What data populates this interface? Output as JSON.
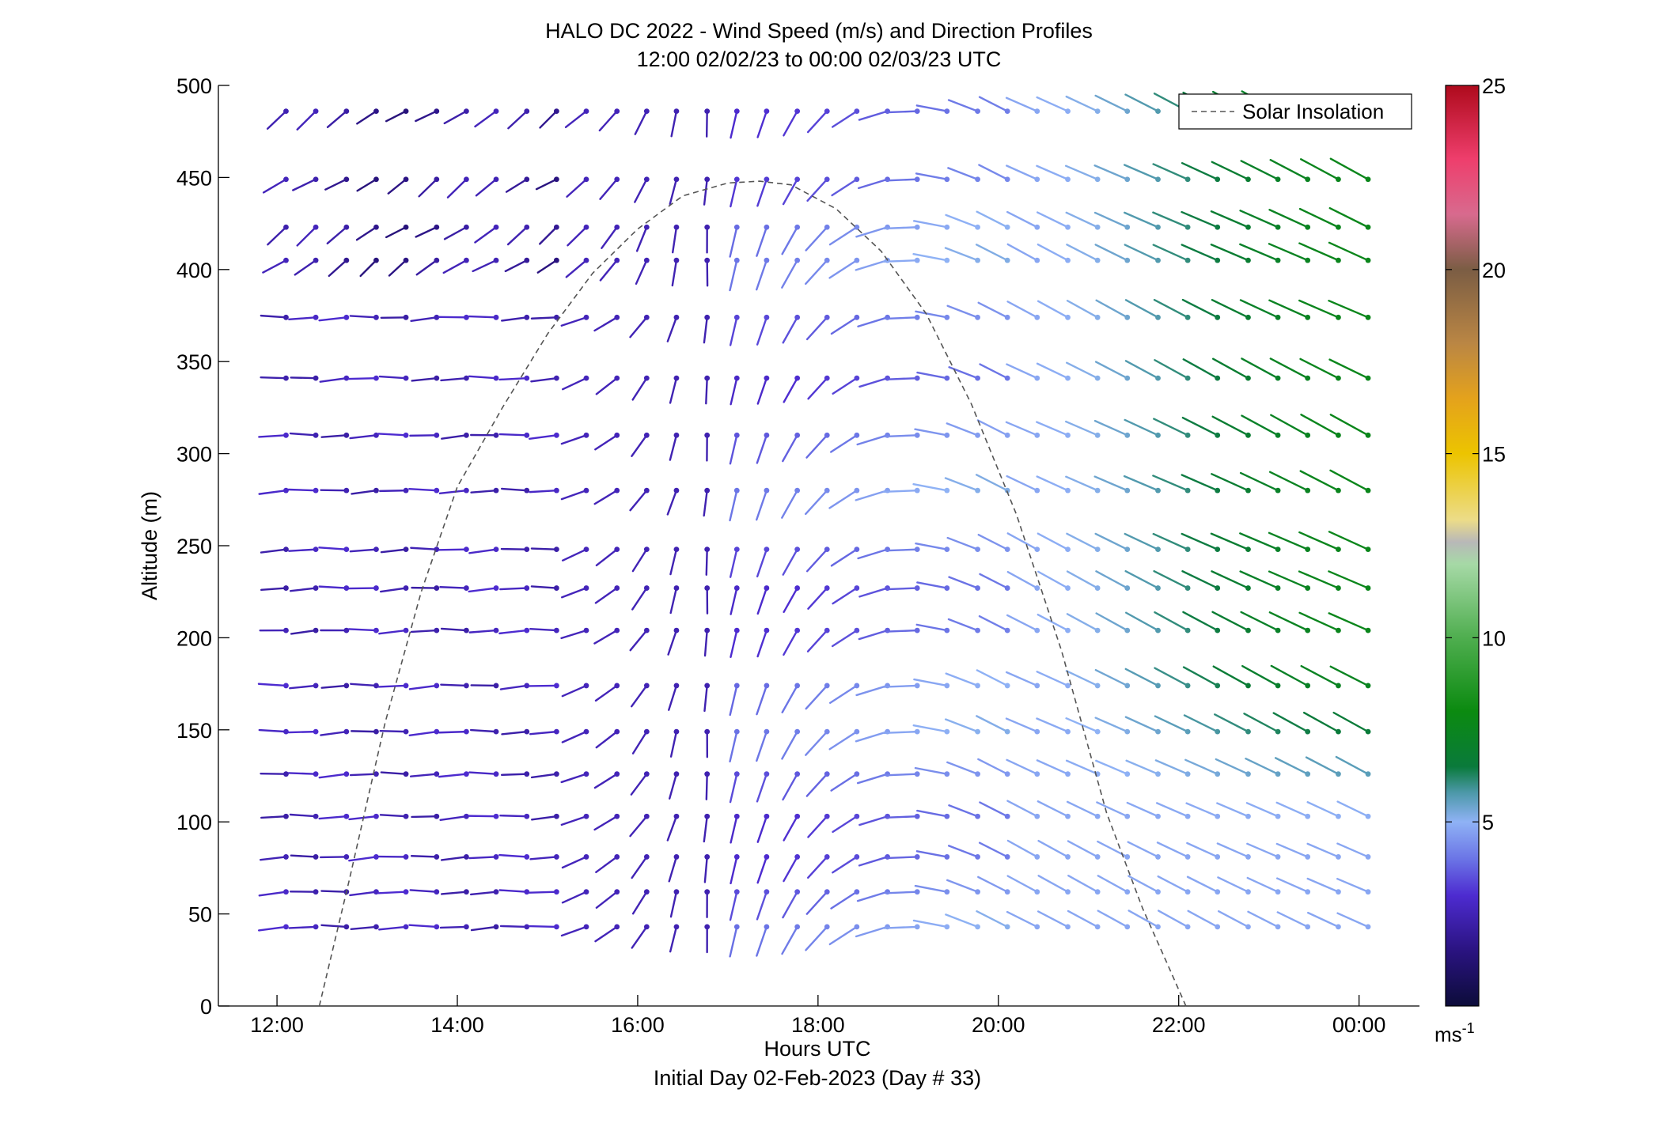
{
  "chart_data": {
    "type": "wind-barb-profile",
    "title": "HALO DC 2022 - Wind Speed (m/s) and Direction Profiles",
    "subtitle": "12:00 02/02/23 to 00:00 02/03/23  UTC",
    "xlabel": "Hours UTC",
    "xlabel2": "Initial Day 02-Feb-2023 (Day # 33)",
    "ylabel": "Altitude (m)",
    "xlim_hours": [
      11.35,
      24.67
    ],
    "ylim": [
      0,
      500
    ],
    "x_ticks": [
      {
        "hour": 12,
        "label": "12:00"
      },
      {
        "hour": 14,
        "label": "14:00"
      },
      {
        "hour": 16,
        "label": "16:00"
      },
      {
        "hour": 18,
        "label": "18:00"
      },
      {
        "hour": 20,
        "label": "20:00"
      },
      {
        "hour": 22,
        "label": "22:00"
      },
      {
        "hour": 24,
        "label": "00:00"
      }
    ],
    "y_ticks": [
      0,
      50,
      100,
      150,
      200,
      250,
      300,
      350,
      400,
      450,
      500
    ],
    "legend": {
      "label": "Solar Insolation",
      "position": "top-right",
      "style": "dashed",
      "color": "#555555"
    },
    "colorbar": {
      "min": 0,
      "max": 25,
      "ticks": [
        5,
        10,
        15,
        20,
        25
      ],
      "unit_label": "ms",
      "unit_exponent": "-1",
      "colors": [
        {
          "v": 0,
          "c": "#0c0c3a"
        },
        {
          "v": 1.5,
          "c": "#2a1380"
        },
        {
          "v": 3,
          "c": "#4d2bd0"
        },
        {
          "v": 4,
          "c": "#6b75e6"
        },
        {
          "v": 5,
          "c": "#8fb2f5"
        },
        {
          "v": 5.8,
          "c": "#4c98a8"
        },
        {
          "v": 6.5,
          "c": "#0a7a3b"
        },
        {
          "v": 8,
          "c": "#0b8a10"
        },
        {
          "v": 10,
          "c": "#4fae4f"
        },
        {
          "v": 12,
          "c": "#a6d9a6"
        },
        {
          "v": 12.6,
          "c": "#b8b8b8"
        },
        {
          "v": 13.2,
          "c": "#ecdc88"
        },
        {
          "v": 15,
          "c": "#ecc400"
        },
        {
          "v": 16.5,
          "c": "#e4a21c"
        },
        {
          "v": 18,
          "c": "#ba8644"
        },
        {
          "v": 20,
          "c": "#7b5d44"
        },
        {
          "v": 21.5,
          "c": "#d86a8e"
        },
        {
          "v": 23,
          "c": "#ee3e6c"
        },
        {
          "v": 25,
          "c": "#ae0a1c"
        }
      ]
    },
    "solar_insolation": {
      "type": "line",
      "x_hours": [
        12.47,
        12.8,
        13.2,
        13.6,
        14.0,
        14.5,
        15.0,
        15.5,
        16.0,
        16.5,
        17.0,
        17.35,
        17.7,
        18.2,
        18.7,
        19.2,
        19.7,
        20.2,
        20.7,
        21.2,
        21.6,
        21.9,
        22.08
      ],
      "y": [
        0,
        68,
        154,
        225,
        282,
        325,
        365,
        398,
        422,
        440,
        447,
        448,
        446,
        433,
        410,
        376,
        327,
        267,
        193,
        105,
        53,
        20,
        0
      ]
    },
    "wind_profiles": {
      "altitudes_m": [
        43,
        62,
        81,
        103,
        126,
        149,
        174,
        204,
        227,
        248,
        280,
        310,
        341,
        374,
        405,
        423,
        449,
        486
      ],
      "times_hours": [
        12.1,
        12.43,
        12.77,
        13.1,
        13.43,
        13.77,
        14.1,
        14.43,
        14.77,
        15.1,
        15.43,
        15.77,
        16.1,
        16.43,
        16.77,
        17.1,
        17.43,
        17.77,
        18.1,
        18.43,
        18.77,
        19.1,
        19.43,
        19.77,
        20.1,
        20.43,
        20.77,
        21.1,
        21.43,
        21.77,
        22.1,
        22.43,
        22.77,
        23.1,
        23.43,
        23.77,
        24.1
      ],
      "notes": "speed in m/s, direction in degrees from which wind blows; values estimated from barb color and length"
    }
  }
}
